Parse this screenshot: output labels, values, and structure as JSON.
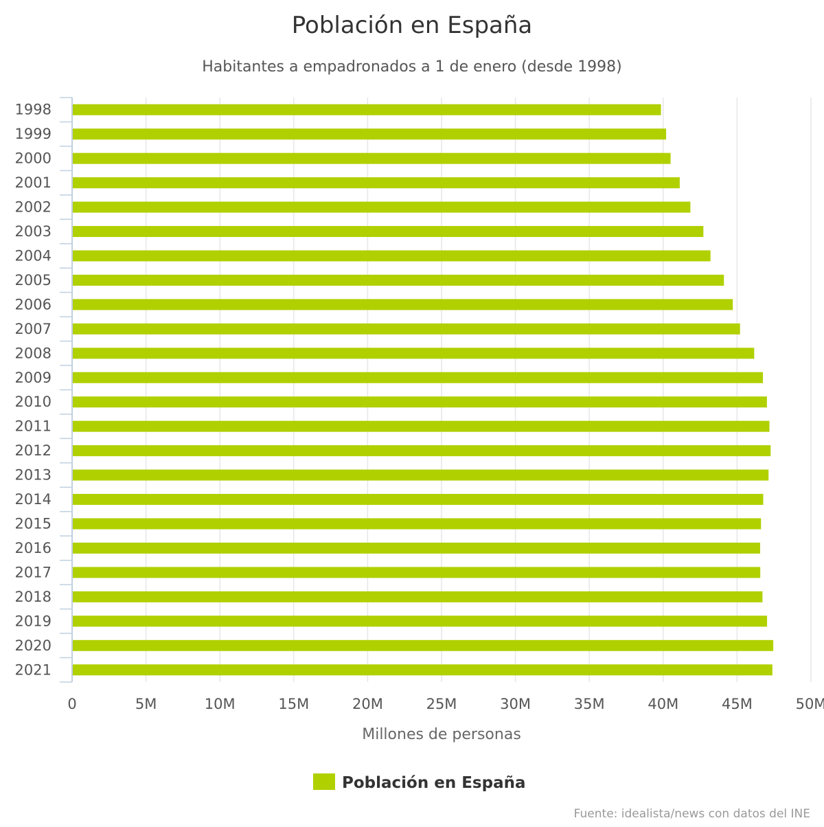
{
  "chart_data": {
    "type": "bar",
    "orientation": "horizontal",
    "title": "Población en España",
    "subtitle": "Habitantes a empadronados a 1 de enero (desde 1998)",
    "xlabel": "Millones de personas",
    "ylabel": "",
    "xlim": [
      0,
      50000000
    ],
    "x_ticks": [
      0,
      5000000,
      10000000,
      15000000,
      20000000,
      25000000,
      30000000,
      35000000,
      40000000,
      45000000,
      50000000
    ],
    "x_tick_labels": [
      "0",
      "5M",
      "10M",
      "15M",
      "20M",
      "25M",
      "30M",
      "35M",
      "40M",
      "45M",
      "50M"
    ],
    "grid": true,
    "categories": [
      "1998",
      "1999",
      "2000",
      "2001",
      "2002",
      "2003",
      "2004",
      "2005",
      "2006",
      "2007",
      "2008",
      "2009",
      "2010",
      "2011",
      "2012",
      "2013",
      "2014",
      "2015",
      "2016",
      "2017",
      "2018",
      "2019",
      "2020",
      "2021"
    ],
    "series": [
      {
        "name": "Población en España",
        "color": "#b0d000",
        "values": [
          39850000,
          40200000,
          40500000,
          41120000,
          41840000,
          42720000,
          43200000,
          44110000,
          44710000,
          45200000,
          46160000,
          46750000,
          47020000,
          47190000,
          47270000,
          47130000,
          46770000,
          46620000,
          46560000,
          46570000,
          46720000,
          47030000,
          47450000,
          47390000
        ]
      }
    ],
    "legend": {
      "placement": "bottom",
      "label": "Población en España"
    },
    "credits": "Fuente: idealista/news con datos del INE"
  }
}
